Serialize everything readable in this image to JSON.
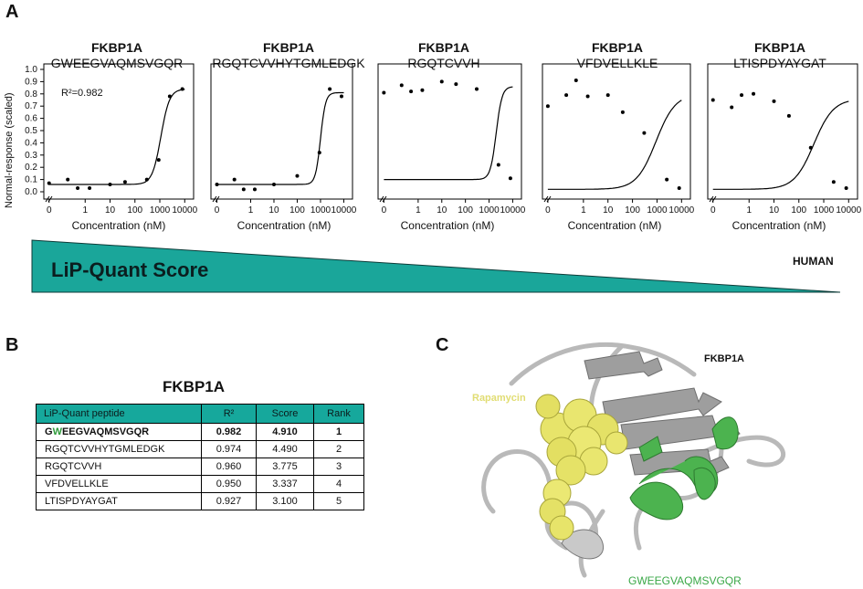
{
  "panels": {
    "a": "A",
    "b": "B",
    "c": "C"
  },
  "y_axis_label": "Normal-response (scaled)",
  "score_bar": {
    "label": "LiP-Quant Score",
    "species": "HUMAN",
    "color": "#1aa69a"
  },
  "chart_data": [
    {
      "type": "scatter",
      "protein": "FKBP1A",
      "peptide": "GWEEGVAQMSVGQR",
      "annotation": "R²=0.982",
      "xlabel": "Concentration (nM)",
      "ylabel": "Normal-response (scaled)",
      "xticks": [
        "0",
        "1",
        "10",
        "100",
        "1000",
        "10000"
      ],
      "yticks": [
        "0.0",
        "0.1",
        "0.2",
        "0.3",
        "0.4",
        "0.5",
        "0.6",
        "0.7",
        "0.8",
        "0.9",
        "1.0"
      ],
      "ylim": [
        0,
        1.0
      ],
      "x_scale": "log",
      "points": [
        {
          "x": 0,
          "y": 0.07
        },
        {
          "x": 0.2,
          "y": 0.1
        },
        {
          "x": 0.5,
          "y": 0.03
        },
        {
          "x": 1.5,
          "y": 0.03
        },
        {
          "x": 10,
          "y": 0.06
        },
        {
          "x": 40,
          "y": 0.08
        },
        {
          "x": 300,
          "y": 0.1
        },
        {
          "x": 900,
          "y": 0.26
        },
        {
          "x": 2500,
          "y": 0.78
        },
        {
          "x": 8000,
          "y": 0.84
        }
      ],
      "fit": {
        "bottom": 0.06,
        "top": 0.84,
        "ec50": 1100,
        "hill": 2.5
      }
    },
    {
      "type": "scatter",
      "protein": "FKBP1A",
      "peptide": "RGQTCVVHYTGMLEDGK",
      "xlabel": "Concentration (nM)",
      "xticks": [
        "0",
        "1",
        "10",
        "100",
        "1000",
        "10000"
      ],
      "ylim": [
        0,
        1.0
      ],
      "x_scale": "log",
      "points": [
        {
          "x": 0,
          "y": 0.06
        },
        {
          "x": 0.2,
          "y": 0.1
        },
        {
          "x": 0.5,
          "y": 0.02
        },
        {
          "x": 1.5,
          "y": 0.02
        },
        {
          "x": 10,
          "y": 0.06
        },
        {
          "x": 100,
          "y": 0.13
        },
        {
          "x": 900,
          "y": 0.32
        },
        {
          "x": 2500,
          "y": 0.84
        },
        {
          "x": 8000,
          "y": 0.78
        }
      ],
      "fit": {
        "bottom": 0.06,
        "top": 0.81,
        "ec50": 1000,
        "hill": 4
      }
    },
    {
      "type": "scatter",
      "protein": "FKBP1A",
      "peptide": "RGQTCVVH",
      "xlabel": "Concentration (nM)",
      "xticks": [
        "0",
        "1",
        "10",
        "100",
        "1000",
        "10000"
      ],
      "ylim": [
        0,
        1.0
      ],
      "x_scale": "log",
      "points": [
        {
          "x": 0,
          "y": 0.81
        },
        {
          "x": 0.2,
          "y": 0.87
        },
        {
          "x": 0.5,
          "y": 0.82
        },
        {
          "x": 1.5,
          "y": 0.83
        },
        {
          "x": 10,
          "y": 0.9
        },
        {
          "x": 40,
          "y": 0.88
        },
        {
          "x": 300,
          "y": 0.84
        },
        {
          "x": 2500,
          "y": 0.22
        },
        {
          "x": 8000,
          "y": 0.11
        }
      ],
      "fit": {
        "bottom": 0.1,
        "top": 0.86,
        "ec50": 2000,
        "hill": 3.5
      }
    },
    {
      "type": "scatter",
      "protein": "FKBP1A",
      "peptide": "VFDVELLKLE",
      "xlabel": "Concentration (nM)",
      "xticks": [
        "0",
        "1",
        "10",
        "100",
        "1000",
        "10000"
      ],
      "ylim": [
        0,
        1.0
      ],
      "x_scale": "log",
      "points": [
        {
          "x": 0,
          "y": 0.7
        },
        {
          "x": 0.2,
          "y": 0.79
        },
        {
          "x": 0.5,
          "y": 0.91
        },
        {
          "x": 1.5,
          "y": 0.78
        },
        {
          "x": 10,
          "y": 0.79
        },
        {
          "x": 40,
          "y": 0.65
        },
        {
          "x": 300,
          "y": 0.48
        },
        {
          "x": 2500,
          "y": 0.1
        },
        {
          "x": 8000,
          "y": 0.03
        }
      ],
      "fit": {
        "bottom": 0.02,
        "top": 0.8,
        "ec50": 900,
        "hill": 1.1
      }
    },
    {
      "type": "scatter",
      "protein": "FKBP1A",
      "peptide": "LTISPDYAYGAT",
      "xlabel": "Concentration (nM)",
      "xticks": [
        "0",
        "1",
        "10",
        "100",
        "1000",
        "10000"
      ],
      "ylim": [
        0,
        1.0
      ],
      "x_scale": "log",
      "points": [
        {
          "x": 0,
          "y": 0.75
        },
        {
          "x": 0.2,
          "y": 0.69
        },
        {
          "x": 0.5,
          "y": 0.79
        },
        {
          "x": 1.5,
          "y": 0.8
        },
        {
          "x": 10,
          "y": 0.74
        },
        {
          "x": 40,
          "y": 0.62
        },
        {
          "x": 300,
          "y": 0.36
        },
        {
          "x": 2500,
          "y": 0.08
        },
        {
          "x": 8000,
          "y": 0.03
        }
      ],
      "fit": {
        "bottom": 0.02,
        "top": 0.76,
        "ec50": 400,
        "hill": 1.1
      }
    }
  ],
  "table": {
    "title": "FKBP1A",
    "headers": [
      "LiP-Quant peptide",
      "R²",
      "Score",
      "Rank"
    ],
    "rows": [
      {
        "peptide_first": "G",
        "peptide_highlight": "W",
        "peptide_rest": "EEGVAQMSVGQR",
        "r2": "0.982",
        "score": "4.910",
        "rank": "1"
      },
      {
        "peptide": "RGQTCVVHYTGMLEDGK",
        "r2": "0.974",
        "score": "4.490",
        "rank": "2"
      },
      {
        "peptide": "RGQTCVVH",
        "r2": "0.960",
        "score": "3.775",
        "rank": "3"
      },
      {
        "peptide": "VFDVELLKLE",
        "r2": "0.950",
        "score": "3.337",
        "rank": "4"
      },
      {
        "peptide": "LTISPDYAYGAT",
        "r2": "0.927",
        "score": "3.100",
        "rank": "5"
      }
    ]
  },
  "structure": {
    "protein": "FKBP1A",
    "ligand": "Rapamycin",
    "peptide": "GWEEGVAQMSVGQR",
    "ligand_color": "#e7e46a",
    "peptide_color": "#3aa847"
  }
}
